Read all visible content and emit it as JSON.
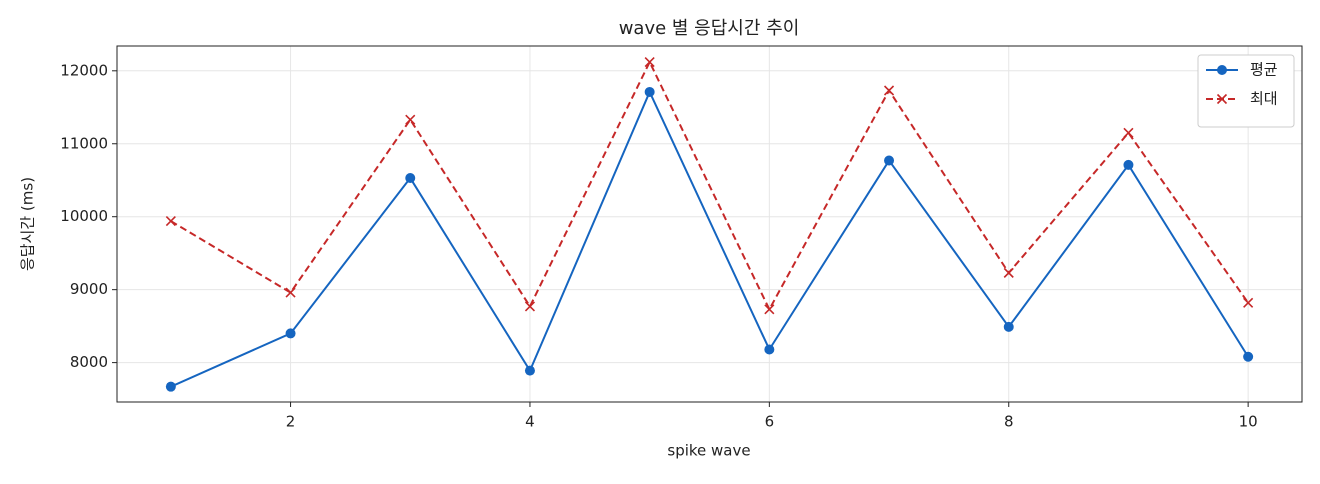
{
  "chart_data": {
    "type": "line",
    "title": "wave 별 응답시간 추이",
    "x_label": "spike wave",
    "y_label": "응답시간 (ms)",
    "x": [
      1,
      2,
      3,
      4,
      5,
      6,
      7,
      8,
      9,
      10
    ],
    "series": [
      {
        "name": "평균",
        "color": "#1565c0",
        "marker": "o",
        "linestyle": "solid",
        "values": [
          7670,
          8400,
          10530,
          7890,
          11710,
          8180,
          10770,
          8490,
          10710,
          8080
        ]
      },
      {
        "name": "최대",
        "color": "#c62828",
        "marker": "x",
        "linestyle": "dashed",
        "values": [
          9940,
          8960,
          11330,
          8770,
          12120,
          8730,
          11730,
          9230,
          11150,
          8820
        ]
      }
    ],
    "xlim": [
      0.55,
      10.45
    ],
    "ylim": [
      7460,
      12340
    ],
    "xticks": [
      2,
      4,
      6,
      8,
      10
    ],
    "yticks": [
      8000,
      9000,
      10000,
      11000,
      12000
    ],
    "grid": true,
    "legend": "upper right"
  }
}
